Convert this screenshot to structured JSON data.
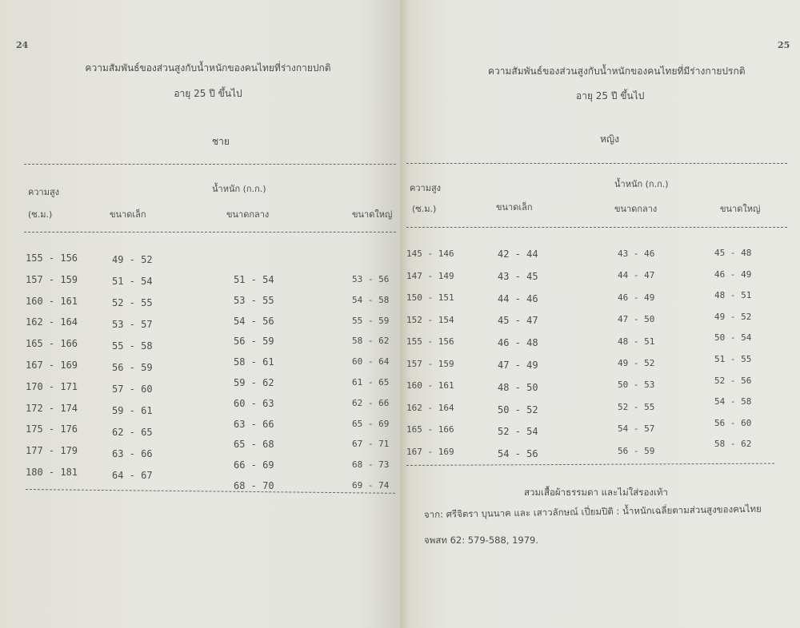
{
  "left_page": {
    "page_number": "24",
    "title_line1": "ความสัมพันธ์ของส่วนสูงกับน้ำหนักของคนไทยที่ร่างกายปกติ",
    "title_line2": "อายุ 25 ปี ขึ้นไป",
    "section": "ชาย",
    "headers": {
      "height": "ความสูง",
      "height_unit": "(ซ.ม.)",
      "weight": "น้ำหนัก (ก.ก.)",
      "small": "ขนาดเล็ก",
      "medium": "ขนาดกลาง",
      "large": "ขนาดใหญ่"
    },
    "table": {
      "height": [
        "155 - 156",
        "157 - 159",
        "160 - 161",
        "162 - 164",
        "165 - 166",
        "167 - 169",
        "170 - 171",
        "172 - 174",
        "175 - 176",
        "177 - 179",
        "180 - 181"
      ],
      "small": [
        "49 - 52",
        "51 - 54",
        "52 - 55",
        "53 - 57",
        "55 - 58",
        "56 - 59",
        "57 - 60",
        "59 - 61",
        "62 - 65",
        "63 - 66",
        "64 - 67"
      ],
      "medium": [
        "51 - 54",
        "53 - 55",
        "54 - 56",
        "56 - 59",
        "58 - 61",
        "59 - 62",
        "60 - 63",
        "63 - 66",
        "65 - 68",
        "66 - 69",
        "68 - 70"
      ],
      "large": [
        "53 - 56",
        "54 - 58",
        "55 - 59",
        "58 - 62",
        "60 - 64",
        "61 - 65",
        "62 - 66",
        "65 - 69",
        "67 - 71",
        "68 - 73",
        "69 - 74"
      ]
    }
  },
  "right_page": {
    "page_number": "25",
    "title_line1": "ความสัมพันธ์ของส่วนสูงกับน้ำหนักของคนไทยที่มีร่างกายปรกติ",
    "title_line2": "อายุ 25 ปี ขึ้นไป",
    "section": "หญิง",
    "headers": {
      "height": "ความสูง",
      "height_unit": "(ซ.ม.)",
      "weight": "น้ำหนัก (ก.ก.)",
      "small": "ขนาดเล็ก",
      "medium": "ขนาดกลาง",
      "large": "ขนาดใหญ่"
    },
    "table": {
      "height": [
        "145 - 146",
        "147 - 149",
        "150 - 151",
        "152 - 154",
        "155 - 156",
        "157 - 159",
        "160 - 161",
        "162 - 164",
        "165 - 166",
        "167 - 169"
      ],
      "small": [
        "42 - 44",
        "43 - 45",
        "44 - 46",
        "45 - 47",
        "46 - 48",
        "47 - 49",
        "48 - 50",
        "50 - 52",
        "52 - 54",
        "54 - 56"
      ],
      "medium": [
        "43 - 46",
        "44 - 47",
        "46 - 49",
        "47 - 50",
        "48 - 51",
        "49 - 52",
        "50 - 53",
        "52 - 55",
        "54 - 57",
        "56 - 59"
      ],
      "large": [
        "45 - 48",
        "46 - 49",
        "48 - 51",
        "49 - 52",
        "50 - 54",
        "51 - 55",
        "52 - 56",
        "54 - 58",
        "56 - 60",
        "58 - 62"
      ]
    },
    "footnote": "สวมเสื้อผ้าธรรมดา และไม่ใส่รองเท้า",
    "source_line1": "จาก: ศรีจิตรา บุนนาค และ เสาวลักษณ์ เปี่ยมปิติ : น้ำหนักเฉลี่ยตามส่วนสูงของคนไทย",
    "source_line2": "จพสท 62: 579-588, 1979."
  }
}
